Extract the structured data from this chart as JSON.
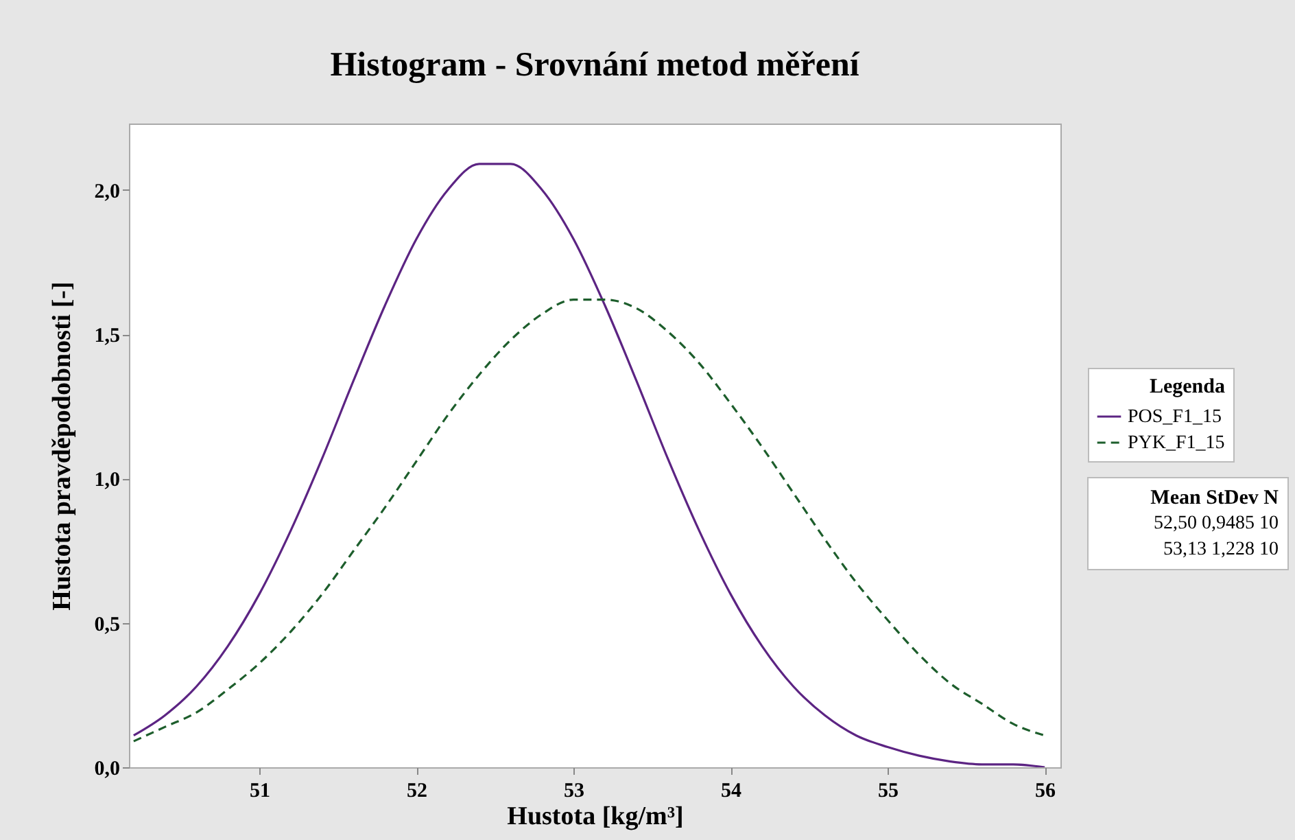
{
  "chart_data": {
    "type": "line",
    "title": "Histogram - Srovnání metod měření",
    "xlabel": "Hustota [kg/m³]",
    "ylabel": "Hustota pravděpodobnosti [-]",
    "legend_title": "Legenda",
    "legend": "right",
    "x": [
      50.2,
      50.4,
      50.6,
      50.8,
      51.0,
      51.2,
      51.4,
      51.6,
      51.8,
      52.0,
      52.2,
      52.4,
      52.6,
      52.8,
      53.0,
      53.2,
      53.4,
      53.6,
      53.8,
      54.0,
      54.2,
      54.4,
      54.6,
      54.8,
      55.0,
      55.2,
      55.4,
      55.6,
      55.8,
      56.0
    ],
    "series": [
      {
        "name": "POS_F1_15",
        "color": "#5c2483",
        "line_style": "solid",
        "values": [
          0.11,
          0.18,
          0.28,
          0.42,
          0.6,
          0.82,
          1.07,
          1.34,
          1.6,
          1.83,
          2.0,
          2.09,
          2.09,
          2.0,
          1.83,
          1.6,
          1.34,
          1.07,
          0.82,
          0.6,
          0.42,
          0.28,
          0.18,
          0.11,
          0.07,
          0.04,
          0.02,
          0.01,
          0.01,
          0.0
        ]
      },
      {
        "name": "PYK_F1_15",
        "color": "#1d5e2c",
        "line_style": "dashed",
        "values": [
          0.09,
          0.14,
          0.19,
          0.27,
          0.36,
          0.47,
          0.6,
          0.75,
          0.9,
          1.06,
          1.22,
          1.36,
          1.48,
          1.57,
          1.62,
          1.62,
          1.59,
          1.51,
          1.4,
          1.26,
          1.11,
          0.95,
          0.79,
          0.64,
          0.51,
          0.39,
          0.29,
          0.22,
          0.15,
          0.11
        ]
      }
    ],
    "xlim": [
      50.17,
      56.1
    ],
    "xticks": [
      51,
      52,
      53,
      54,
      55,
      56
    ],
    "ylim": [
      0,
      2.23
    ],
    "yticks": [
      {
        "value": 0,
        "label": "0,0"
      },
      {
        "value": 0.5,
        "label": "0,5"
      },
      {
        "value": 1,
        "label": "1,0"
      },
      {
        "value": 1.5,
        "label": "1,5"
      },
      {
        "value": 2,
        "label": "2,0"
      }
    ],
    "grid": false,
    "marker": "none",
    "annotations": [
      "Mean  StDev   N",
      "52,50  0,9485  10",
      "53,13    1,228  10"
    ]
  }
}
